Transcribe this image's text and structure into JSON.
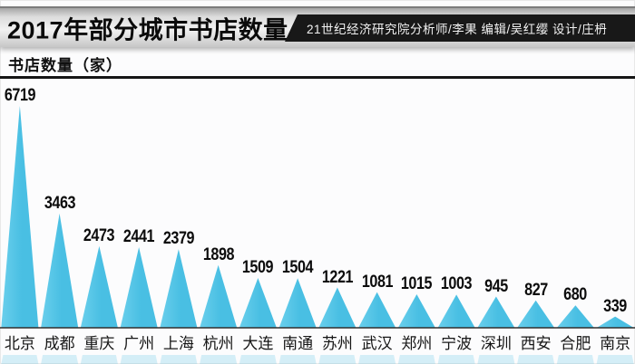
{
  "header": {
    "title": "2017年部分城市书店数量",
    "credits": "21世纪经济研究院分析师/李果  编辑/吴红缨  设计/庄枬"
  },
  "axis": {
    "ylabel": "书店数量（家）"
  },
  "chart_data": {
    "type": "bar",
    "variant": "triangle-peaks",
    "title": "2017年部分城市书店数量",
    "ylabel": "书店数量（家）",
    "categories": [
      "北京",
      "成都",
      "重庆",
      "广州",
      "上海",
      "杭州",
      "大连",
      "南通",
      "苏州",
      "武汉",
      "郑州",
      "宁波",
      "深圳",
      "西安",
      "合肥",
      "南京"
    ],
    "values": [
      6719,
      3463,
      2473,
      2441,
      2379,
      1898,
      1509,
      1504,
      1221,
      1081,
      1015,
      1003,
      945,
      827,
      680,
      339
    ],
    "ylim": [
      0,
      6719
    ],
    "grid": false,
    "legend": false,
    "bar_color": "#49BFE3",
    "bar_color_light": "#6ACFEC",
    "label_color": "#0c0c0c",
    "baseline_color": "#2e2e2e"
  }
}
